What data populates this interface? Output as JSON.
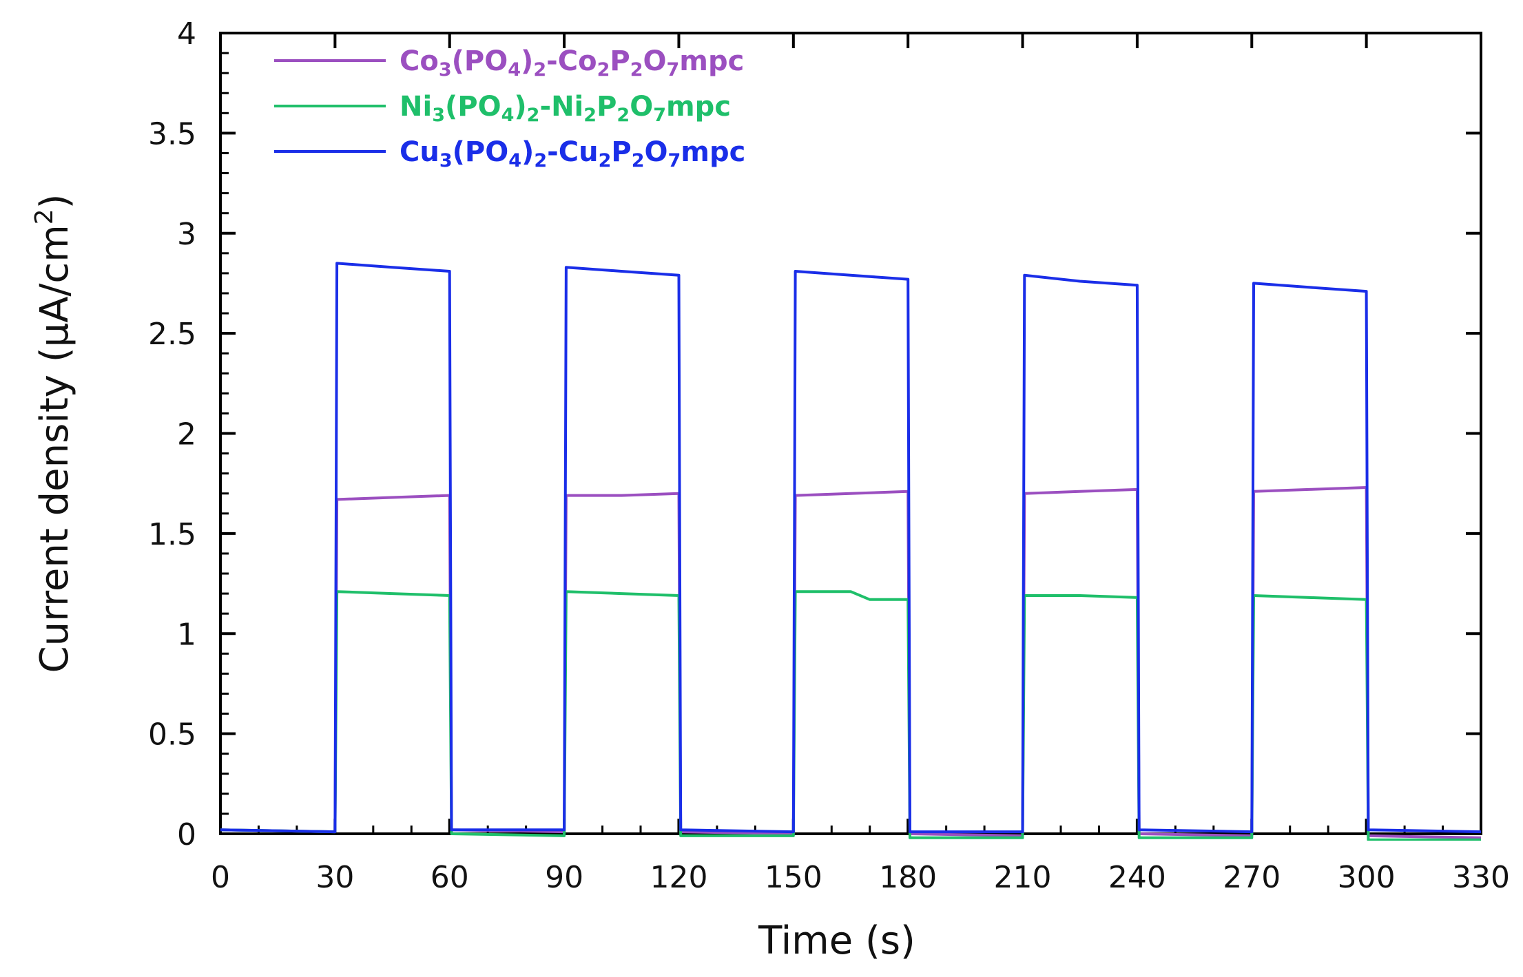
{
  "chart_data": {
    "type": "line",
    "title": "",
    "xlabel": "Time (s)",
    "ylabel": "Current density (μA/cm²)",
    "ylabel_parts": {
      "main": "Current density (μA/cm",
      "sup": "2",
      "close": ")"
    },
    "xlim": [
      0,
      330
    ],
    "ylim": [
      0,
      4
    ],
    "x_ticks": [
      0,
      30,
      60,
      90,
      120,
      150,
      180,
      210,
      240,
      270,
      300,
      330
    ],
    "y_ticks": [
      0,
      0.5,
      1,
      1.5,
      2,
      2.5,
      3,
      3.5,
      4
    ],
    "y_tick_labels": [
      "0",
      "0.5",
      "1",
      "1.5",
      "2",
      "2.5",
      "3",
      "3.5",
      "4"
    ],
    "grid": false,
    "legend_position": "top-left",
    "series": [
      {
        "name": "Co3(PO4)2-Co2P2O7mpc",
        "legend_parts": [
          {
            "t": "Co"
          },
          {
            "t": "3",
            "sub": true
          },
          {
            "t": "(PO"
          },
          {
            "t": "4",
            "sub": true
          },
          {
            "t": ")"
          },
          {
            "t": "2",
            "sub": true
          },
          {
            "t": "-Co"
          },
          {
            "t": "2",
            "sub": true
          },
          {
            "t": "P"
          },
          {
            "t": "2",
            "sub": true
          },
          {
            "t": "O"
          },
          {
            "t": "7",
            "sub": true
          },
          {
            "t": "mpc"
          }
        ],
        "color": "#9b4fc0",
        "points": [
          [
            0,
            0.02
          ],
          [
            30,
            0.01
          ],
          [
            30.5,
            1.67
          ],
          [
            45,
            1.68
          ],
          [
            60,
            1.69
          ],
          [
            60.5,
            0.02
          ],
          [
            90,
            0.01
          ],
          [
            90.5,
            1.69
          ],
          [
            105,
            1.69
          ],
          [
            120,
            1.7
          ],
          [
            120.5,
            0.01
          ],
          [
            150,
            0.0
          ],
          [
            150.5,
            1.69
          ],
          [
            165,
            1.7
          ],
          [
            180,
            1.71
          ],
          [
            180.5,
            0.0
          ],
          [
            210,
            -0.01
          ],
          [
            210.5,
            1.7
          ],
          [
            225,
            1.71
          ],
          [
            240,
            1.72
          ],
          [
            240.5,
            0.0
          ],
          [
            270,
            -0.01
          ],
          [
            270.5,
            1.71
          ],
          [
            285,
            1.72
          ],
          [
            300,
            1.73
          ],
          [
            300.5,
            -0.01
          ],
          [
            330,
            -0.02
          ]
        ]
      },
      {
        "name": "Ni3(PO4)2-Ni2P2O7mpc",
        "legend_parts": [
          {
            "t": "Ni"
          },
          {
            "t": "3",
            "sub": true
          },
          {
            "t": "(PO"
          },
          {
            "t": "4",
            "sub": true
          },
          {
            "t": ")"
          },
          {
            "t": "2",
            "sub": true
          },
          {
            "t": "-Ni"
          },
          {
            "t": "2",
            "sub": true
          },
          {
            "t": "P"
          },
          {
            "t": "2",
            "sub": true
          },
          {
            "t": "O"
          },
          {
            "t": "7",
            "sub": true
          },
          {
            "t": "mpc"
          }
        ],
        "color": "#1fbf6a",
        "points": [
          [
            0,
            0.02
          ],
          [
            30,
            0.01
          ],
          [
            30.5,
            1.21
          ],
          [
            45,
            1.2
          ],
          [
            60,
            1.19
          ],
          [
            60.5,
            0.0
          ],
          [
            90,
            -0.01
          ],
          [
            90.5,
            1.21
          ],
          [
            105,
            1.2
          ],
          [
            120,
            1.19
          ],
          [
            120.5,
            -0.01
          ],
          [
            150,
            -0.01
          ],
          [
            150.5,
            1.21
          ],
          [
            165,
            1.21
          ],
          [
            170,
            1.17
          ],
          [
            180,
            1.17
          ],
          [
            180.5,
            -0.02
          ],
          [
            210,
            -0.02
          ],
          [
            210.5,
            1.19
          ],
          [
            225,
            1.19
          ],
          [
            240,
            1.18
          ],
          [
            240.5,
            -0.02
          ],
          [
            270,
            -0.02
          ],
          [
            270.5,
            1.19
          ],
          [
            285,
            1.18
          ],
          [
            300,
            1.17
          ],
          [
            300.5,
            -0.03
          ],
          [
            330,
            -0.03
          ]
        ]
      },
      {
        "name": "Cu3(PO4)2-Cu2P2O7mpc",
        "legend_parts": [
          {
            "t": "Cu"
          },
          {
            "t": "3",
            "sub": true
          },
          {
            "t": "(PO"
          },
          {
            "t": "4",
            "sub": true
          },
          {
            "t": ")"
          },
          {
            "t": "2",
            "sub": true
          },
          {
            "t": "-Cu"
          },
          {
            "t": "2",
            "sub": true
          },
          {
            "t": "P"
          },
          {
            "t": "2",
            "sub": true
          },
          {
            "t": "O"
          },
          {
            "t": "7",
            "sub": true
          },
          {
            "t": "mpc"
          }
        ],
        "color": "#1a2ee8",
        "points": [
          [
            0,
            0.02
          ],
          [
            30,
            0.01
          ],
          [
            30.5,
            2.85
          ],
          [
            45,
            2.83
          ],
          [
            60,
            2.81
          ],
          [
            60.5,
            0.02
          ],
          [
            90,
            0.02
          ],
          [
            90.5,
            2.83
          ],
          [
            105,
            2.81
          ],
          [
            120,
            2.79
          ],
          [
            120.5,
            0.02
          ],
          [
            150,
            0.01
          ],
          [
            150.5,
            2.81
          ],
          [
            165,
            2.79
          ],
          [
            180,
            2.77
          ],
          [
            180.5,
            0.01
          ],
          [
            210,
            0.01
          ],
          [
            210.5,
            2.79
          ],
          [
            225,
            2.76
          ],
          [
            240,
            2.74
          ],
          [
            240.5,
            0.02
          ],
          [
            270,
            0.01
          ],
          [
            270.5,
            2.75
          ],
          [
            285,
            2.73
          ],
          [
            300,
            2.71
          ],
          [
            300.5,
            0.02
          ],
          [
            330,
            0.01
          ]
        ]
      }
    ]
  }
}
